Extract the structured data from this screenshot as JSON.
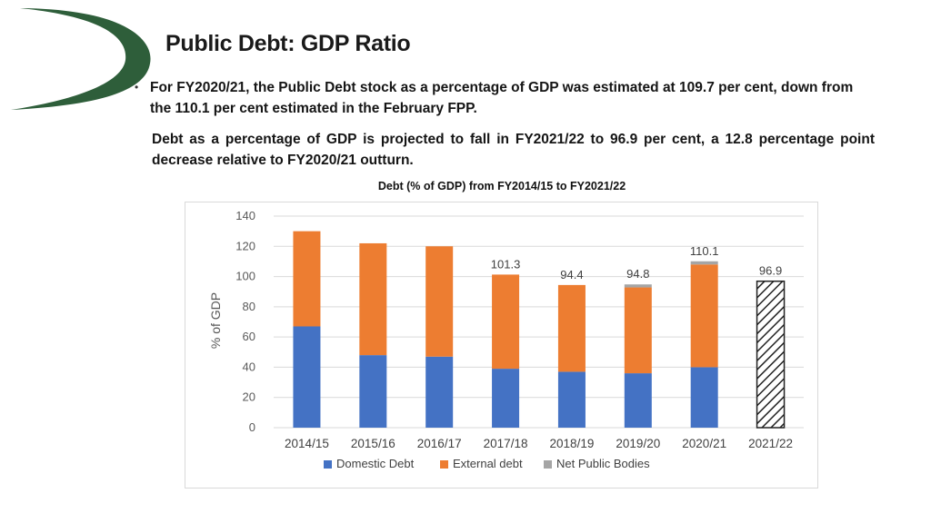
{
  "slide": {
    "title": "Public Debt: GDP Ratio",
    "bullet": "For FY2020/21, the Public Debt stock as a percentage of GDP was estimated at 109.7 per cent, down from the 110.1 per cent estimated in the February FPP.",
    "paragraph": "Debt as a percentage of GDP is projected to fall in FY2021/22 to 96.9 per cent, a 12.8 percentage point decrease relative to FY2020/21 outturn.",
    "chart_heading": "Debt (% of GDP) from FY2014/15 to FY2021/22",
    "logo_color": "#2e5e3a"
  },
  "chart_data": {
    "type": "bar",
    "stacked": true,
    "title": "Debt (% of GDP) from FY2014/15 to FY2021/22",
    "ylabel": "% of GDP",
    "xlabel": "",
    "ylim": [
      0,
      140
    ],
    "yticks": [
      0,
      20,
      40,
      60,
      80,
      100,
      120,
      140
    ],
    "grid": true,
    "legend_position": "bottom",
    "categories": [
      "2014/15",
      "2015/16",
      "2016/17",
      "2017/18",
      "2018/19",
      "2019/20",
      "2020/21",
      "2021/22"
    ],
    "series": [
      {
        "name": "Domestic Debt",
        "color": "#4472c4",
        "values": [
          67,
          48,
          47,
          39,
          37,
          36,
          40,
          null
        ]
      },
      {
        "name": "External debt",
        "color": "#ed7d31",
        "values": [
          63,
          74,
          73,
          62.3,
          57.4,
          56.8,
          68,
          null
        ]
      },
      {
        "name": "Net Public Bodies",
        "color": "#a5a5a5",
        "values": [
          0,
          0,
          0,
          0,
          0,
          2,
          2.1,
          null
        ]
      }
    ],
    "projection": {
      "category": "2021/22",
      "value": 96.9,
      "pattern": "hatched"
    },
    "data_labels": [
      {
        "category": "2017/18",
        "text": "101.3"
      },
      {
        "category": "2018/19",
        "text": "94.4"
      },
      {
        "category": "2019/20",
        "text": "94.8"
      },
      {
        "category": "2020/21",
        "text": "110.1"
      },
      {
        "category": "2021/22",
        "text": "96.9"
      }
    ]
  }
}
